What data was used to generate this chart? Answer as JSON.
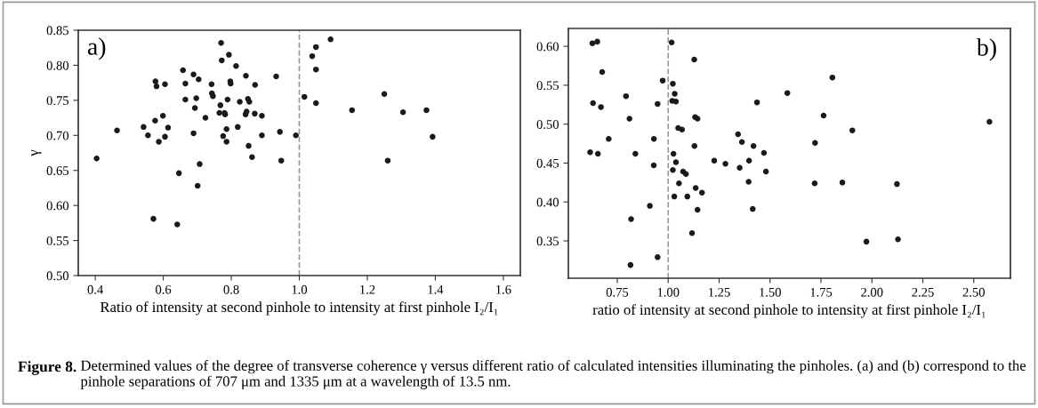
{
  "chart_data": [
    {
      "type": "scatter",
      "xlabel": "Ratio of intensity at second pinhole to intensity at first pinhole I₂/I₁",
      "ylabel": "γ",
      "annotations": [
        "a)",
        "Figure 8.",
        "Determined values of the degree of transverse coherence γ versus different ratio of calculated intensities illuminating the pinholes. (a) and (b) correspond to the pinhole separations of 707 μm and 1335 μm at a wavelength of 13.5 nm."
      ],
      "xlim": [
        0.35,
        1.65
      ],
      "ylim": [
        0.5,
        0.85
      ],
      "xticks": [
        {
          "value": 0.4,
          "label": "0.4"
        },
        {
          "value": 0.6,
          "label": "0.6"
        },
        {
          "value": 0.8,
          "label": "0.8"
        },
        {
          "value": 1.0,
          "label": "1.0"
        },
        {
          "value": 1.2,
          "label": "1.2"
        },
        {
          "value": 1.4,
          "label": "1.4"
        },
        {
          "value": 1.6,
          "label": "1.6"
        }
      ],
      "yticks": [
        {
          "value": 0.5,
          "label": "0.50"
        },
        {
          "value": 0.55,
          "label": "0.55"
        },
        {
          "value": 0.6,
          "label": "0.60"
        },
        {
          "value": 0.65,
          "label": "0.65"
        },
        {
          "value": 0.7,
          "label": "0.70"
        },
        {
          "value": 0.75,
          "label": "0.75"
        },
        {
          "value": 0.8,
          "label": "0.80"
        },
        {
          "value": 0.85,
          "label": "0.85"
        }
      ],
      "grid": false,
      "legend": false,
      "marker": "circle",
      "ref_lines": [
        {
          "axis": "x",
          "value": 1.0,
          "color": "#999999",
          "line_style": "dashed"
        }
      ],
      "series": [
        {
          "color": "#1a1a1a",
          "x": [
            0.404,
            0.464,
            0.542,
            0.555,
            0.576,
            0.577,
            0.58,
            0.587,
            0.599,
            0.605,
            0.605,
            0.614,
            0.571,
            0.641,
            0.646,
            0.658,
            0.665,
            0.665,
            0.689,
            0.689,
            0.693,
            0.697,
            0.704,
            0.701,
            0.707,
            0.724,
            0.742,
            0.743,
            0.746,
            0.77,
            0.768,
            0.765,
            0.772,
            0.78,
            0.776,
            0.782,
            0.786,
            0.786,
            0.789,
            0.793,
            0.797,
            0.798,
            0.814,
            0.819,
            0.825,
            0.843,
            0.849,
            0.853,
            0.845,
            0.842,
            0.851,
            0.861,
            0.87,
            0.869,
            0.89,
            0.89,
            0.932,
            0.943,
            0.947,
            0.99,
            1.015,
            1.038,
            1.049,
            1.049,
            1.049,
            1.092,
            1.155,
            1.25,
            1.26,
            1.305,
            1.374,
            1.392
          ],
          "values": [
            0.667,
            0.707,
            0.712,
            0.7,
            0.721,
            0.777,
            0.77,
            0.691,
            0.728,
            0.773,
            0.698,
            0.711,
            0.581,
            0.573,
            0.646,
            0.793,
            0.774,
            0.751,
            0.787,
            0.703,
            0.739,
            0.753,
            0.78,
            0.628,
            0.659,
            0.725,
            0.773,
            0.76,
            0.756,
            0.832,
            0.743,
            0.732,
            0.807,
            0.732,
            0.699,
            0.73,
            0.709,
            0.691,
            0.751,
            0.815,
            0.777,
            0.774,
            0.799,
            0.712,
            0.748,
            0.785,
            0.752,
            0.748,
            0.734,
            0.73,
            0.685,
            0.669,
            0.772,
            0.731,
            0.728,
            0.7,
            0.784,
            0.705,
            0.664,
            0.7,
            0.755,
            0.813,
            0.826,
            0.794,
            0.746,
            0.837,
            0.736,
            0.759,
            0.664,
            0.733,
            0.736,
            0.698
          ]
        }
      ]
    },
    {
      "type": "scatter",
      "xlabel": "ratio of intensity at second pinhole to intensity at first pinhole I₂/I₁",
      "annotations": [
        "b)"
      ],
      "xlim": [
        0.51,
        2.68
      ],
      "ylim": [
        0.302,
        0.623
      ],
      "xticks": [
        {
          "value": 0.75,
          "label": "0.75"
        },
        {
          "value": 1.0,
          "label": "1.00"
        },
        {
          "value": 1.25,
          "label": "1.25"
        },
        {
          "value": 1.5,
          "label": "1.50"
        },
        {
          "value": 1.75,
          "label": "1.75"
        },
        {
          "value": 2.0,
          "label": "2.00"
        },
        {
          "value": 2.25,
          "label": "2.25"
        },
        {
          "value": 2.5,
          "label": "2.50"
        }
      ],
      "yticks": [
        {
          "value": 0.35,
          "label": "0.35"
        },
        {
          "value": 0.4,
          "label": "0.40"
        },
        {
          "value": 0.45,
          "label": "0.45"
        },
        {
          "value": 0.5,
          "label": "0.50"
        },
        {
          "value": 0.55,
          "label": "0.55"
        },
        {
          "value": 0.6,
          "label": "0.60"
        }
      ],
      "grid": false,
      "legend": false,
      "marker": "circle",
      "ref_lines": [
        {
          "axis": "x",
          "value": 1.0,
          "color": "#999999",
          "line_style": "dashed"
        }
      ],
      "series": [
        {
          "color": "#1a1a1a",
          "x": [
            0.628,
            0.652,
            0.676,
            0.631,
            0.67,
            0.617,
            0.655,
            0.708,
            0.793,
            0.81,
            0.818,
            0.815,
            0.839,
            0.91,
            0.929,
            0.93,
            0.948,
            0.973,
            0.948,
            1.017,
            1.023,
            1.032,
            1.02,
            1.038,
            1.049,
            1.068,
            1.026,
            1.038,
            1.023,
            1.073,
            1.087,
            1.053,
            1.03,
            1.094,
            1.128,
            1.132,
            1.144,
            1.129,
            1.135,
            1.166,
            1.144,
            1.117,
            1.226,
            1.281,
            1.343,
            1.362,
            1.351,
            1.397,
            1.419,
            1.395,
            1.415,
            1.436,
            1.47,
            1.48,
            1.806,
            1.585,
            1.763,
            1.904,
            1.721,
            2.577,
            1.719,
            1.855,
            2.123,
            1.973,
            2.128
          ],
          "values": [
            0.604,
            0.606,
            0.567,
            0.527,
            0.522,
            0.464,
            0.462,
            0.481,
            0.536,
            0.507,
            0.378,
            0.319,
            0.462,
            0.395,
            0.447,
            0.481,
            0.526,
            0.556,
            0.329,
            0.605,
            0.552,
            0.539,
            0.53,
            0.529,
            0.495,
            0.493,
            0.462,
            0.451,
            0.441,
            0.439,
            0.436,
            0.424,
            0.407,
            0.407,
            0.583,
            0.509,
            0.507,
            0.472,
            0.418,
            0.412,
            0.39,
            0.36,
            0.453,
            0.449,
            0.487,
            0.477,
            0.444,
            0.453,
            0.472,
            0.426,
            0.391,
            0.528,
            0.463,
            0.439,
            0.56,
            0.54,
            0.511,
            0.492,
            0.476,
            0.503,
            0.424,
            0.425,
            0.423,
            0.349,
            0.352
          ]
        }
      ]
    }
  ]
}
